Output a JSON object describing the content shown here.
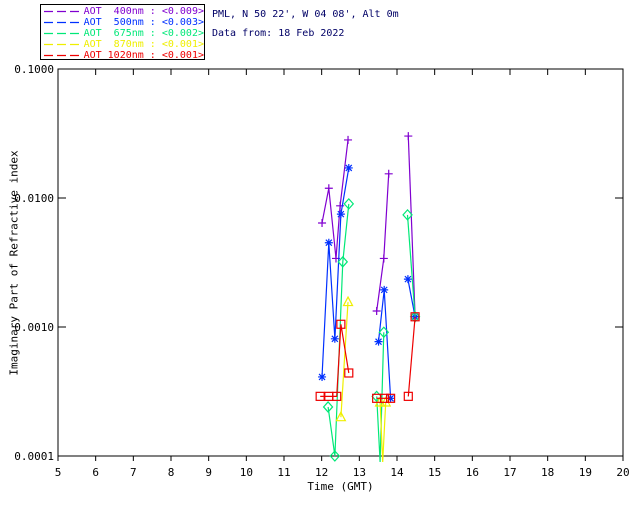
{
  "header": {
    "line1": "PML, N 50 22', W 04 08', Alt 0m",
    "line2": "Data from: 18 Feb 2022"
  },
  "legend": {
    "items": [
      {
        "label": "AOT  400nm : <0.009>",
        "wavelength": "400nm",
        "value": "<0.009>",
        "color": "#8000D0"
      },
      {
        "label": "AOT  500nm : <0.003>",
        "wavelength": "500nm",
        "value": "<0.003>",
        "color": "#0030FF"
      },
      {
        "label": "AOT  675nm : <0.002>",
        "wavelength": "675nm",
        "value": "<0.002>",
        "color": "#00E878"
      },
      {
        "label": "AOT  870nm : <0.001>",
        "wavelength": "870nm",
        "value": "<0.001>",
        "color": "#EFEF00"
      },
      {
        "label": "AOT 1020nm : <0.001>",
        "wavelength": "1020nm",
        "value": "<0.001>",
        "color": "#EE0000"
      }
    ]
  },
  "chart_data": {
    "type": "line",
    "xlabel": "Time (GMT)",
    "ylabel": "Imaginary Part of Refractive index",
    "x_scale": "linear",
    "y_scale": "log",
    "xlim": [
      5,
      20
    ],
    "ylim": [
      0.0001,
      0.1
    ],
    "x_ticks": [
      5,
      6,
      7,
      8,
      9,
      10,
      11,
      12,
      13,
      14,
      15,
      16,
      17,
      18,
      19,
      20
    ],
    "y_ticks": [
      {
        "v": 0.1,
        "label": "0.1000"
      },
      {
        "v": 0.01,
        "label": "0.0100"
      },
      {
        "v": 0.001,
        "label": "0.0010"
      },
      {
        "v": 0.0001,
        "label": "0.0001"
      }
    ],
    "grid": false,
    "legend_position": "top-left-outside",
    "note": "Values below 0.0001 are off-scale dips where the trace is clipped at the bottom axis",
    "series": [
      {
        "name": "AOT 400nm",
        "color": "#8000D0",
        "marker": "plus",
        "segments": [
          [
            [
              12.01,
              0.0064
            ],
            [
              12.19,
              0.0119
            ],
            [
              12.38,
              0.0034
            ],
            [
              12.49,
              0.0087
            ],
            [
              12.7,
              0.0282
            ]
          ],
          [
            [
              13.46,
              0.00133
            ],
            [
              13.65,
              0.0034
            ],
            [
              13.78,
              0.0154
            ]
          ],
          [
            [
              14.3,
              0.0302
            ],
            [
              14.48,
              0.0012
            ]
          ]
        ]
      },
      {
        "name": "AOT 500nm",
        "color": "#0030FF",
        "marker": "asterisk",
        "segments": [
          [
            [
              12.01,
              0.00041
            ],
            [
              12.19,
              0.0045
            ],
            [
              12.35,
              0.00081
            ],
            [
              12.51,
              0.0075
            ],
            [
              12.72,
              0.0171
            ]
          ],
          [
            [
              13.51,
              0.00077
            ],
            [
              13.66,
              0.00194
            ],
            [
              13.83,
              0.00028
            ]
          ],
          [
            [
              14.29,
              0.00235
            ],
            [
              14.48,
              0.0012
            ]
          ]
        ]
      },
      {
        "name": "AOT 675nm",
        "color": "#00E878",
        "marker": "diamond",
        "segments": [
          [
            [
              12.17,
              0.00024
            ],
            [
              12.35,
              0.0001
            ],
            [
              12.56,
              0.0032
            ],
            [
              12.72,
              0.009
            ]
          ],
          [
            [
              13.46,
              0.00029
            ],
            [
              13.55,
              8.5e-05
            ],
            [
              13.65,
              0.00091
            ]
          ],
          [
            [
              14.28,
              0.0074
            ],
            [
              14.48,
              0.0012
            ]
          ]
        ]
      },
      {
        "name": "AOT 870nm",
        "color": "#EFEF00",
        "marker": "triangle",
        "segments": [
          [
            [
              12.51,
              0.0002
            ],
            [
              12.7,
              0.00156
            ]
          ],
          [
            [
              13.55,
              0.00026
            ],
            [
              13.62,
              6e-05
            ],
            [
              13.7,
              0.00026
            ]
          ]
        ]
      },
      {
        "name": "AOT 1020nm",
        "color": "#EE0000",
        "marker": "square",
        "segments": [
          [
            [
              11.96,
              0.00029
            ],
            [
              12.19,
              0.00029
            ],
            [
              12.4,
              0.00029
            ],
            [
              12.51,
              0.00105
            ],
            [
              12.72,
              0.00044
            ]
          ],
          [
            [
              13.46,
              0.00028
            ],
            [
              13.67,
              0.00028
            ],
            [
              13.83,
              0.00028
            ]
          ],
          [
            [
              14.3,
              0.00029
            ],
            [
              14.48,
              0.0012
            ]
          ]
        ]
      }
    ]
  }
}
